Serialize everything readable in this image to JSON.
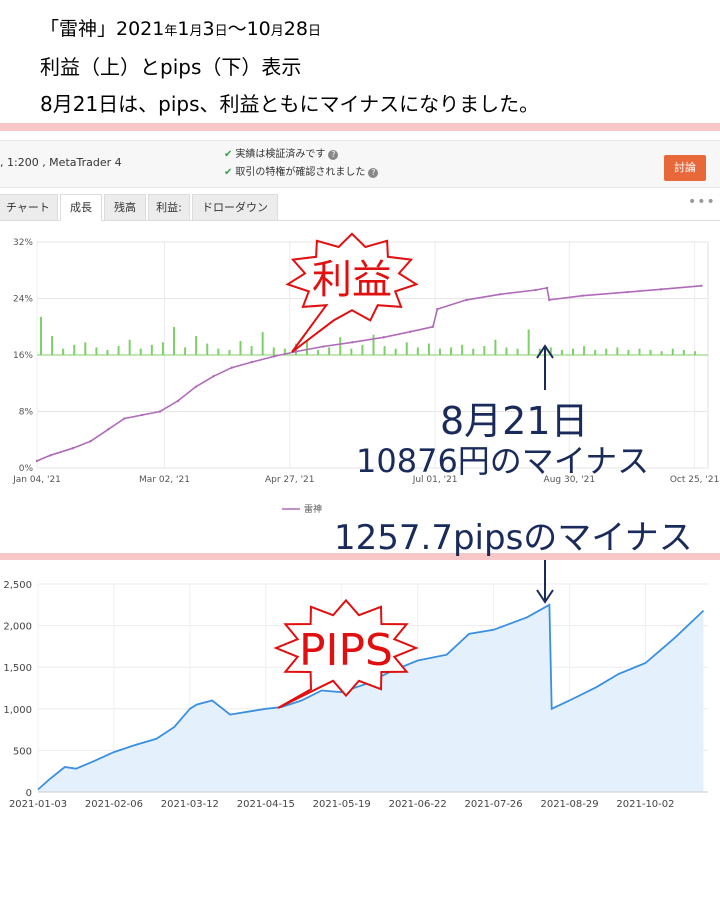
{
  "header": {
    "line1_open": "「雷神」2021",
    "line1_y": "年",
    "line1_m1": "1",
    "line1_mo": "月",
    "line1_d1": "3",
    "line1_day": "日",
    "line1_tilde": "〜10",
    "line1_mo2": "月",
    "line1_d2": "28",
    "line1_day2": "日",
    "line2": "利益（上）とpips（下）表示",
    "line3": "8月21日は、pips、利益ともにマイナスになりました。"
  },
  "account": {
    "leverage_platform": ", 1:200 , MetaTrader 4",
    "verified_1": "実績は検証済みです",
    "verified_2": "取引の特権が確認されました",
    "discuss_button": "討論"
  },
  "tabs": [
    {
      "label": "チャート",
      "active": false
    },
    {
      "label": "成長",
      "active": true
    },
    {
      "label": "残高",
      "active": false
    },
    {
      "label": "利益:",
      "active": false
    },
    {
      "label": "ドローダウン",
      "active": false
    }
  ],
  "menu_icon": "more-dots-icon",
  "annotations": {
    "profit_burst": "利益",
    "pips_burst": "PIPS",
    "date_note": "8月21日",
    "yen_note": "10876円のマイナス",
    "pips_note": "1257.7pipsのマイナス"
  },
  "colors": {
    "growth_line": "#b06bb8",
    "daily_bars": "#7dcf68",
    "pips_line": "#3a8fe0",
    "pips_fill": "#e4f1fc",
    "annotation_red": "#e01010",
    "annotation_navy": "#1a2a5a",
    "divider_pink": "#f8c7c7",
    "discuss_orange": "#e8683a"
  },
  "chart_data": [
    {
      "type": "line",
      "title": "",
      "xlabel": "",
      "ylabel": "",
      "ylim": [
        0,
        32
      ],
      "y_ticks": [
        "0%",
        "8%",
        "16%",
        "24%",
        "32%"
      ],
      "x_ticks": [
        "Jan 04, '21",
        "Mar 02, '21",
        "Apr 27, '21",
        "Jul 01, '21",
        "Aug 30, '21",
        "Oct 25, '21"
      ],
      "grid": true,
      "legend": "bottom-center",
      "series": [
        {
          "name": "雷神",
          "x": [
            "2021-01-04",
            "2021-01-10",
            "2021-01-20",
            "2021-01-28",
            "2021-02-05",
            "2021-02-12",
            "2021-02-20",
            "2021-02-28",
            "2021-03-08",
            "2021-03-16",
            "2021-03-24",
            "2021-04-01",
            "2021-04-10",
            "2021-04-20",
            "2021-04-30",
            "2021-05-12",
            "2021-05-25",
            "2021-06-08",
            "2021-06-20",
            "2021-06-30",
            "2021-07-02",
            "2021-07-15",
            "2021-07-30",
            "2021-08-15",
            "2021-08-20",
            "2021-08-21",
            "2021-09-05",
            "2021-09-25",
            "2021-10-10",
            "2021-10-28"
          ],
          "values": [
            1.0,
            1.8,
            2.8,
            3.8,
            5.5,
            7.0,
            7.5,
            8.0,
            9.5,
            11.5,
            13.0,
            14.2,
            15.0,
            15.8,
            16.5,
            17.2,
            17.8,
            18.5,
            19.3,
            20.0,
            22.5,
            23.8,
            24.6,
            25.2,
            25.5,
            23.8,
            24.4,
            24.9,
            25.3,
            25.8
          ]
        }
      ],
      "bars": {
        "name": "daily",
        "note": "daily profit bars near the 16% baseline",
        "values": [
          3,
          1.5,
          0.5,
          0.8,
          1,
          0.6,
          0.4,
          0.7,
          1.2,
          0.5,
          0.8,
          1,
          2.2,
          0.6,
          1.5,
          0.9,
          0.5,
          0.4,
          1.1,
          0.7,
          1.8,
          0.6,
          0.5,
          0.9,
          1.3,
          0.4,
          0.6,
          1.4,
          0.5,
          0.8,
          1.6,
          0.7,
          0.5,
          1.0,
          0.6,
          0.9,
          0.5,
          0.6,
          0.8,
          0.5,
          0.7,
          1.2,
          0.6,
          0.5,
          2.0,
          0.5,
          0.6,
          0.4,
          0.5,
          0.7,
          0.4,
          0.5,
          0.6,
          0.4,
          0.5,
          0.4,
          0.3,
          0.5,
          0.4,
          0.3
        ]
      }
    },
    {
      "type": "area",
      "title": "",
      "xlabel": "",
      "ylabel": "",
      "ylim": [
        0,
        2500
      ],
      "y_ticks": [
        "0",
        "500",
        "1,000",
        "1,500",
        "2,000",
        "2,500"
      ],
      "x_ticks": [
        "2021-01-03",
        "2021-02-06",
        "2021-03-12",
        "2021-04-15",
        "2021-05-19",
        "2021-06-22",
        "2021-07-26",
        "2021-08-29",
        "2021-10-02"
      ],
      "grid": true,
      "series": [
        {
          "name": "pips",
          "x": [
            "2021-01-03",
            "2021-01-08",
            "2021-01-15",
            "2021-01-20",
            "2021-01-28",
            "2021-02-06",
            "2021-02-15",
            "2021-02-25",
            "2021-03-05",
            "2021-03-12",
            "2021-03-15",
            "2021-03-22",
            "2021-03-30",
            "2021-04-08",
            "2021-04-15",
            "2021-04-22",
            "2021-05-01",
            "2021-05-10",
            "2021-05-19",
            "2021-05-30",
            "2021-06-10",
            "2021-06-22",
            "2021-07-05",
            "2021-07-15",
            "2021-07-26",
            "2021-08-10",
            "2021-08-20",
            "2021-08-21",
            "2021-08-29",
            "2021-09-10",
            "2021-09-20",
            "2021-10-02",
            "2021-10-15",
            "2021-10-28"
          ],
          "values": [
            30,
            150,
            300,
            280,
            370,
            480,
            560,
            640,
            780,
            1000,
            1050,
            1100,
            930,
            970,
            1000,
            1020,
            1100,
            1220,
            1200,
            1300,
            1450,
            1580,
            1650,
            1900,
            1950,
            2100,
            2250,
            1000,
            1100,
            1260,
            1420,
            1550,
            1850,
            2180
          ]
        }
      ]
    }
  ]
}
